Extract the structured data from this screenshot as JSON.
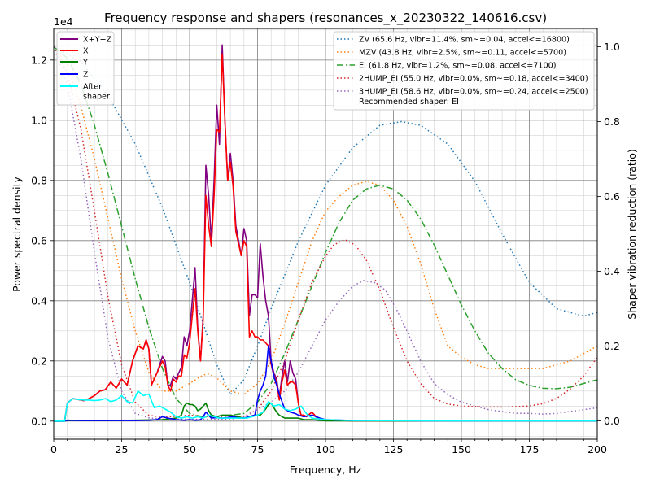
{
  "chart_data": {
    "type": "line",
    "title": "Frequency response and shapers (resonances_x_20230322_140616.csv)",
    "xlabel": "Frequency, Hz",
    "ylabel": "Power spectral density",
    "ylabel_right": "Shaper vibration reduction (ratio)",
    "xlim": [
      0,
      200
    ],
    "ylim": [
      -0.06,
      1.305
    ],
    "ylim_right": [
      -0.049,
      1.049
    ],
    "y_scale_label": "1e4",
    "xticks": [
      0,
      25,
      50,
      75,
      100,
      125,
      150,
      175,
      200
    ],
    "xtick_labels": [
      "0",
      "25",
      "50",
      "75",
      "100",
      "125",
      "150",
      "175",
      "200"
    ],
    "yticks": [
      0.0,
      0.2,
      0.4,
      0.6,
      0.8,
      1.0,
      1.2
    ],
    "ytick_labels": [
      "0.0",
      "0.2",
      "0.4",
      "0.6",
      "0.8",
      "1.0",
      "1.2"
    ],
    "yticks_right": [
      0.0,
      0.2,
      0.4,
      0.6,
      0.8,
      1.0
    ],
    "ytick_labels_right": [
      "0.0",
      "0.2",
      "0.4",
      "0.6",
      "0.8",
      "1.0"
    ],
    "grid": true,
    "legend_left_placement": "top-left",
    "legend_right_placement": "top-right",
    "recommended_text": "Recommended shaper: EI",
    "psd_series": [
      {
        "name": "X+Y+Z",
        "color": "#800080",
        "x": [
          0,
          4,
          5,
          7,
          9,
          11,
          13,
          15,
          17,
          19,
          21,
          23,
          25,
          27,
          29,
          31,
          33,
          34,
          35,
          36,
          38,
          40,
          41,
          42,
          43,
          44,
          45,
          46,
          47,
          48,
          49,
          50,
          51,
          52,
          53,
          54,
          55,
          56,
          57,
          58,
          59,
          60,
          61,
          62,
          63,
          64,
          65,
          66,
          67,
          68,
          69,
          70,
          71,
          72,
          73,
          74,
          75,
          76,
          77,
          78,
          79,
          80,
          81,
          82,
          83,
          84,
          85,
          86,
          87,
          88,
          89,
          90,
          91,
          92,
          93,
          95,
          97,
          98,
          100,
          105,
          110,
          120,
          130,
          150,
          200
        ],
        "y": [
          0,
          0,
          0.06,
          0.075,
          0.072,
          0.068,
          0.075,
          0.085,
          0.1,
          0.105,
          0.13,
          0.11,
          0.14,
          0.12,
          0.2,
          0.25,
          0.24,
          0.27,
          0.24,
          0.12,
          0.16,
          0.215,
          0.2,
          0.12,
          0.12,
          0.15,
          0.14,
          0.16,
          0.18,
          0.28,
          0.25,
          0.3,
          0.4,
          0.51,
          0.31,
          0.2,
          0.35,
          0.85,
          0.75,
          0.6,
          0.8,
          1.05,
          0.92,
          1.25,
          1.0,
          0.8,
          0.89,
          0.8,
          0.65,
          0.6,
          0.55,
          0.64,
          0.6,
          0.35,
          0.42,
          0.42,
          0.41,
          0.59,
          0.48,
          0.4,
          0.35,
          0.2,
          0.16,
          0.14,
          0.08,
          0.15,
          0.2,
          0.13,
          0.2,
          0.16,
          0.14,
          0.06,
          0.02,
          0.02,
          0.015,
          0.03,
          0.01,
          0.005,
          0.004,
          0.002,
          0.001,
          0.001,
          0.001,
          0.001,
          0.0005
        ]
      },
      {
        "name": "X",
        "color": "#ff0000",
        "x": [
          0,
          4,
          5,
          7,
          9,
          11,
          13,
          15,
          17,
          19,
          21,
          23,
          25,
          27,
          29,
          31,
          33,
          34,
          35,
          36,
          38,
          40,
          41,
          42,
          43,
          44,
          45,
          46,
          47,
          48,
          49,
          50,
          51,
          52,
          53,
          54,
          55,
          56,
          57,
          58,
          59,
          60,
          61,
          62,
          63,
          64,
          65,
          66,
          67,
          68,
          69,
          70,
          71,
          72,
          73,
          74,
          75,
          76,
          77,
          78,
          79,
          80,
          81,
          82,
          83,
          84,
          85,
          86,
          87,
          88,
          89,
          90,
          91,
          92,
          93,
          95,
          97,
          98,
          100,
          105,
          110,
          120,
          130,
          150,
          200
        ],
        "y": [
          0,
          0,
          0.06,
          0.075,
          0.072,
          0.068,
          0.075,
          0.085,
          0.1,
          0.105,
          0.13,
          0.11,
          0.14,
          0.12,
          0.2,
          0.25,
          0.24,
          0.27,
          0.24,
          0.12,
          0.16,
          0.2,
          0.18,
          0.12,
          0.1,
          0.14,
          0.13,
          0.15,
          0.15,
          0.22,
          0.21,
          0.26,
          0.35,
          0.44,
          0.3,
          0.2,
          0.34,
          0.75,
          0.65,
          0.58,
          0.75,
          0.97,
          0.96,
          1.22,
          1.0,
          0.8,
          0.86,
          0.78,
          0.63,
          0.59,
          0.55,
          0.6,
          0.58,
          0.28,
          0.3,
          0.28,
          0.28,
          0.27,
          0.27,
          0.26,
          0.25,
          0.19,
          0.15,
          0.13,
          0.07,
          0.13,
          0.17,
          0.12,
          0.13,
          0.13,
          0.12,
          0.06,
          0.02,
          0.02,
          0.015,
          0.03,
          0.01,
          0.005,
          0.004,
          0.002,
          0.001,
          0.001,
          0.001,
          0.001,
          0.0005
        ]
      },
      {
        "name": "Y",
        "color": "#008000",
        "x": [
          0,
          4,
          5,
          10,
          20,
          30,
          40,
          45,
          47,
          48,
          49,
          50,
          51,
          52,
          53,
          54,
          55,
          56,
          57,
          58,
          60,
          62,
          65,
          70,
          72,
          74,
          75,
          76,
          77,
          78,
          79,
          80,
          81,
          82,
          83,
          84,
          85,
          87,
          90,
          92,
          95,
          100,
          110,
          150,
          200
        ],
        "y": [
          0,
          0,
          0.002,
          0.002,
          0.002,
          0.003,
          0.005,
          0.01,
          0.02,
          0.05,
          0.06,
          0.055,
          0.055,
          0.05,
          0.035,
          0.04,
          0.05,
          0.06,
          0.035,
          0.02,
          0.015,
          0.02,
          0.02,
          0.01,
          0.015,
          0.02,
          0.02,
          0.02,
          0.03,
          0.04,
          0.055,
          0.06,
          0.045,
          0.03,
          0.02,
          0.015,
          0.01,
          0.01,
          0.01,
          0.005,
          0.005,
          0.001,
          0.001,
          0.0005,
          0.0005
        ]
      },
      {
        "name": "Z",
        "color": "#0000ff",
        "x": [
          0,
          4,
          5,
          10,
          20,
          30,
          35,
          38,
          40,
          42,
          45,
          48,
          50,
          52,
          54,
          55,
          56,
          57,
          58,
          60,
          62,
          64,
          66,
          68,
          70,
          72,
          74,
          75,
          76,
          77,
          78,
          79,
          80,
          81,
          82,
          83,
          85,
          87,
          89,
          90,
          92,
          95,
          98,
          100,
          110,
          150,
          200
        ],
        "y": [
          0,
          0,
          0.003,
          0.002,
          0.002,
          0.002,
          0.003,
          0.005,
          0.015,
          0.01,
          0.005,
          0.003,
          0.005,
          0.003,
          0.004,
          0.015,
          0.03,
          0.02,
          0.01,
          0.012,
          0.01,
          0.012,
          0.015,
          0.01,
          0.01,
          0.015,
          0.02,
          0.07,
          0.1,
          0.12,
          0.15,
          0.25,
          0.2,
          0.15,
          0.12,
          0.09,
          0.04,
          0.03,
          0.025,
          0.02,
          0.015,
          0.02,
          0.01,
          0.005,
          0.002,
          0.001,
          0.001
        ]
      },
      {
        "name": "After\nshaper",
        "color": "#00ffff",
        "x": [
          0,
          4,
          5,
          7,
          9,
          11,
          13,
          15,
          17,
          19,
          21,
          23,
          25,
          27,
          29,
          31,
          33,
          35,
          37,
          39,
          41,
          43,
          45,
          47,
          49,
          51,
          53,
          55,
          57,
          59,
          61,
          63,
          65,
          67,
          69,
          71,
          73,
          75,
          77,
          79,
          81,
          83,
          85,
          87,
          89,
          91,
          93,
          95,
          100,
          110,
          150,
          200
        ],
        "y": [
          0,
          0,
          0.06,
          0.075,
          0.072,
          0.07,
          0.07,
          0.068,
          0.07,
          0.075,
          0.065,
          0.07,
          0.085,
          0.065,
          0.06,
          0.1,
          0.085,
          0.09,
          0.045,
          0.05,
          0.04,
          0.03,
          0.015,
          0.01,
          0.015,
          0.01,
          0.015,
          0.01,
          0.02,
          0.015,
          0.01,
          0.01,
          0.01,
          0.01,
          0.01,
          0.01,
          0.015,
          0.02,
          0.03,
          0.065,
          0.05,
          0.055,
          0.04,
          0.035,
          0.04,
          0.05,
          0.025,
          0.01,
          0.005,
          0.002,
          0.001,
          0.001
        ]
      }
    ],
    "shaper_series": [
      {
        "name": "ZV (65.6 Hz, vibr=11.4%, sm~=0.04, accel<=16800)",
        "color": "#1f77b4",
        "dash": "1.5,3",
        "x": [
          0,
          10,
          20,
          30,
          40,
          50,
          55,
          60,
          65,
          70,
          75,
          80,
          90,
          100,
          110,
          120,
          128,
          135,
          145,
          155,
          165,
          175,
          185,
          195,
          200
        ],
        "y": [
          1.0,
          0.96,
          0.87,
          0.74,
          0.57,
          0.37,
          0.26,
          0.15,
          0.07,
          0.11,
          0.2,
          0.3,
          0.48,
          0.63,
          0.73,
          0.79,
          0.8,
          0.79,
          0.74,
          0.64,
          0.5,
          0.37,
          0.3,
          0.28,
          0.29
        ]
      },
      {
        "name": "MZV (43.8 Hz, vibr=2.5%, sm~=0.11, accel<=5700)",
        "color": "#ff7f0e",
        "dash": "1.5,3",
        "x": [
          0,
          5,
          10,
          15,
          20,
          25,
          30,
          35,
          40,
          45,
          50,
          55,
          57,
          60,
          65,
          70,
          75,
          80,
          85,
          90,
          95,
          100,
          105,
          110,
          115,
          120,
          125,
          130,
          135,
          140,
          145,
          150,
          155,
          160,
          170,
          180,
          190,
          200
        ],
        "y": [
          1.0,
          0.95,
          0.84,
          0.7,
          0.54,
          0.38,
          0.24,
          0.13,
          0.08,
          0.08,
          0.1,
          0.123,
          0.125,
          0.115,
          0.08,
          0.07,
          0.1,
          0.16,
          0.26,
          0.37,
          0.48,
          0.56,
          0.6,
          0.63,
          0.64,
          0.63,
          0.59,
          0.52,
          0.42,
          0.3,
          0.2,
          0.17,
          0.15,
          0.14,
          0.14,
          0.14,
          0.16,
          0.2
        ]
      },
      {
        "name": "EI (61.8 Hz, vibr=1.2%, sm~=0.08, accel<=7100)",
        "color": "#2ca02c",
        "dash": "8,3,1.5,3",
        "x": [
          0,
          5,
          10,
          15,
          20,
          25,
          30,
          35,
          40,
          45,
          50,
          55,
          60,
          65,
          70,
          75,
          80,
          85,
          90,
          95,
          100,
          105,
          110,
          115,
          120,
          125,
          130,
          135,
          140,
          145,
          150,
          155,
          160,
          165,
          170,
          175,
          180,
          185,
          190,
          195,
          200
        ],
        "y": [
          1.0,
          0.97,
          0.9,
          0.79,
          0.66,
          0.52,
          0.38,
          0.25,
          0.14,
          0.06,
          0.02,
          0.01,
          0.012,
          0.015,
          0.02,
          0.05,
          0.1,
          0.18,
          0.27,
          0.36,
          0.45,
          0.53,
          0.59,
          0.62,
          0.63,
          0.62,
          0.59,
          0.54,
          0.47,
          0.39,
          0.31,
          0.24,
          0.18,
          0.14,
          0.11,
          0.095,
          0.087,
          0.086,
          0.09,
          0.1,
          0.11
        ]
      },
      {
        "name": "2HUMP_EI (55.0 Hz, vibr=0.0%, sm~=0.18, accel<=3400)",
        "color": "#d62728",
        "dash": "1.5,3",
        "x": [
          0,
          5,
          10,
          15,
          20,
          25,
          30,
          35,
          40,
          45,
          50,
          55,
          60,
          65,
          70,
          75,
          80,
          85,
          90,
          95,
          100,
          103,
          107,
          111,
          115,
          120,
          125,
          130,
          135,
          140,
          145,
          150,
          155,
          160,
          165,
          170,
          175,
          180,
          185,
          190,
          195,
          200
        ],
        "y": [
          1.0,
          0.93,
          0.78,
          0.56,
          0.33,
          0.15,
          0.05,
          0.015,
          0.01,
          0.012,
          0.015,
          0.012,
          0.01,
          0.01,
          0.012,
          0.03,
          0.08,
          0.16,
          0.27,
          0.37,
          0.44,
          0.47,
          0.485,
          0.47,
          0.43,
          0.35,
          0.25,
          0.16,
          0.1,
          0.06,
          0.045,
          0.04,
          0.038,
          0.037,
          0.037,
          0.038,
          0.04,
          0.046,
          0.06,
          0.085,
          0.12,
          0.17
        ]
      },
      {
        "name": "3HUMP_EI (58.6 Hz, vibr=0.0%, sm~=0.24, accel<=2500)",
        "color": "#9467bd",
        "dash": "1.5,3",
        "x": [
          0,
          5,
          10,
          15,
          20,
          25,
          30,
          35,
          40,
          45,
          50,
          55,
          60,
          65,
          70,
          75,
          80,
          85,
          90,
          95,
          100,
          105,
          110,
          114,
          118,
          122,
          126,
          130,
          135,
          140,
          145,
          150,
          155,
          160,
          165,
          170,
          175,
          180,
          185,
          190,
          195,
          200
        ],
        "y": [
          1.0,
          0.9,
          0.7,
          0.45,
          0.22,
          0.08,
          0.02,
          0.008,
          0.005,
          0.005,
          0.004,
          0.004,
          0.004,
          0.005,
          0.01,
          0.03,
          0.05,
          0.08,
          0.13,
          0.2,
          0.27,
          0.32,
          0.36,
          0.375,
          0.37,
          0.35,
          0.3,
          0.24,
          0.16,
          0.1,
          0.07,
          0.05,
          0.04,
          0.03,
          0.025,
          0.02,
          0.02,
          0.018,
          0.02,
          0.025,
          0.03,
          0.035
        ]
      }
    ]
  }
}
